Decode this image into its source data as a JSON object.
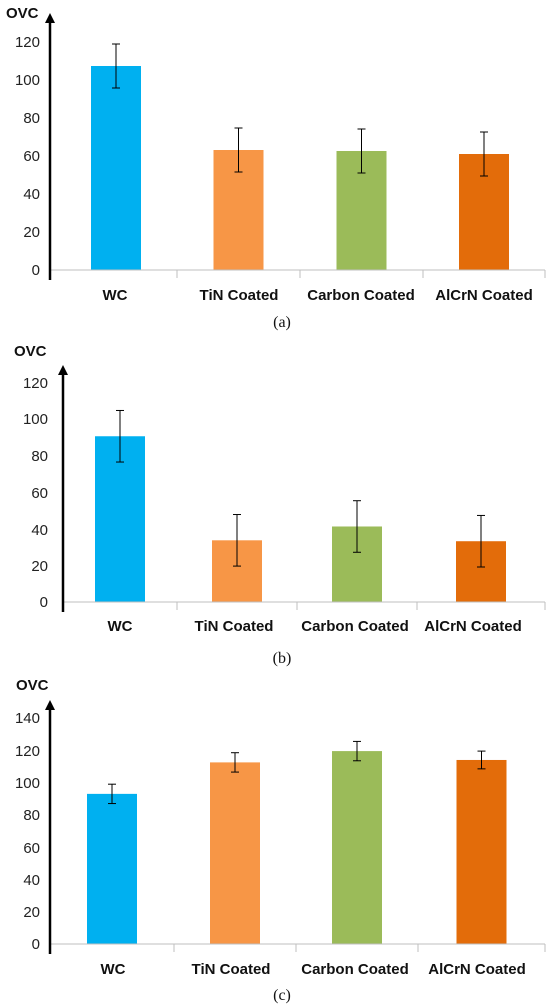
{
  "chart_data": [
    {
      "type": "bar",
      "ylabel": "OVC",
      "caption": "(a)",
      "categories": [
        "WC",
        "TiN Coated",
        "Carbon Coated",
        "AlCrN Coated"
      ],
      "values": [
        102,
        60,
        59.5,
        58
      ],
      "errors": [
        11,
        11,
        11,
        11
      ],
      "ylim": [
        0,
        120
      ],
      "yticks": [
        "0",
        "20",
        "40",
        "60",
        "80",
        "100",
        "120"
      ],
      "colors": [
        "#00b0f0",
        "#f79646",
        "#9bbb59",
        "#e36c0a"
      ],
      "grid": false
    },
    {
      "type": "bar",
      "ylabel": "OVC",
      "caption": "(b)",
      "categories": [
        "WC",
        "TiN Coated",
        "Carbon Coated",
        "AlCrN Coated"
      ],
      "values": [
        90,
        33.5,
        41,
        33
      ],
      "errors": [
        14,
        14,
        14,
        14
      ],
      "ylim": [
        0,
        120
      ],
      "yticks": [
        "0",
        "20",
        "40",
        "60",
        "80",
        "100",
        "120"
      ],
      "colors": [
        "#00b0f0",
        "#f79646",
        "#9bbb59",
        "#e36c0a"
      ],
      "grid": false
    },
    {
      "type": "bar",
      "ylabel": "OVC",
      "caption": "(c)",
      "categories": [
        "WC",
        "TiN Coated",
        "Carbon Coated",
        "AlCrN Coated"
      ],
      "values": [
        93,
        112.5,
        119.5,
        114
      ],
      "errors": [
        6,
        6,
        6,
        5.5
      ],
      "ylim": [
        0,
        140
      ],
      "yticks": [
        "0",
        "20",
        "40",
        "60",
        "80",
        "100",
        "120",
        "140"
      ],
      "colors": [
        "#00b0f0",
        "#f79646",
        "#9bbb59",
        "#e36c0a"
      ],
      "grid": false
    }
  ]
}
